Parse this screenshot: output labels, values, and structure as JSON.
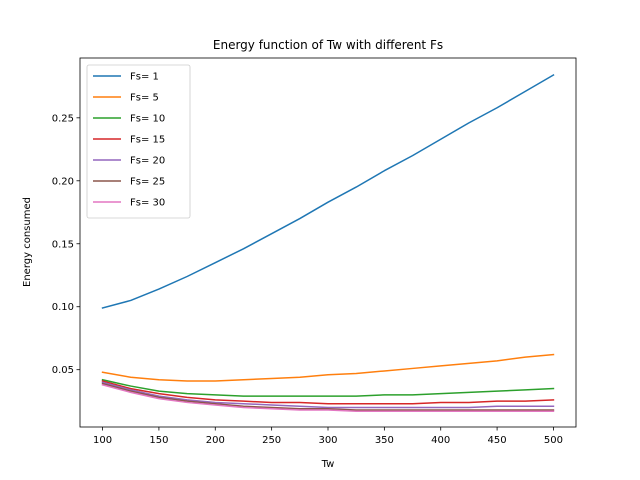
{
  "chart_data": {
    "type": "line",
    "title": "Energy function of Tw with different Fs",
    "xlabel": "Tw",
    "ylabel": "Energy consumed",
    "xlim": [
      80,
      520
    ],
    "ylim": [
      0.0045,
      0.2975
    ],
    "xticks": [
      100,
      150,
      200,
      250,
      300,
      350,
      400,
      450,
      500
    ],
    "yticks": [
      0.05,
      0.1,
      0.15,
      0.2,
      0.25
    ],
    "ytick_labels": [
      "0.05",
      "0.10",
      "0.15",
      "0.20",
      "0.25"
    ],
    "grid": false,
    "legend_position": "top-left",
    "x": [
      100,
      125,
      150,
      175,
      200,
      225,
      250,
      275,
      300,
      325,
      350,
      375,
      400,
      425,
      450,
      475,
      500
    ],
    "series": [
      {
        "name": "Fs= 1",
        "color": "#1f77b4",
        "values": [
          0.099,
          0.105,
          0.114,
          0.124,
          0.135,
          0.146,
          0.158,
          0.17,
          0.183,
          0.195,
          0.208,
          0.22,
          0.233,
          0.246,
          0.258,
          0.271,
          0.284
        ]
      },
      {
        "name": "Fs= 5",
        "color": "#ff7f0e",
        "values": [
          0.048,
          0.044,
          0.042,
          0.041,
          0.041,
          0.042,
          0.043,
          0.044,
          0.046,
          0.047,
          0.049,
          0.051,
          0.053,
          0.055,
          0.057,
          0.06,
          0.062
        ]
      },
      {
        "name": "Fs= 10",
        "color": "#2ca02c",
        "values": [
          0.042,
          0.037,
          0.033,
          0.031,
          0.03,
          0.029,
          0.029,
          0.029,
          0.029,
          0.029,
          0.03,
          0.03,
          0.031,
          0.032,
          0.033,
          0.034,
          0.035
        ]
      },
      {
        "name": "Fs= 15",
        "color": "#d62728",
        "values": [
          0.041,
          0.035,
          0.031,
          0.028,
          0.026,
          0.025,
          0.024,
          0.024,
          0.023,
          0.023,
          0.023,
          0.023,
          0.024,
          0.024,
          0.025,
          0.025,
          0.026
        ]
      },
      {
        "name": "Fs= 20",
        "color": "#9467bd",
        "values": [
          0.04,
          0.034,
          0.029,
          0.026,
          0.024,
          0.023,
          0.022,
          0.021,
          0.02,
          0.02,
          0.02,
          0.02,
          0.02,
          0.02,
          0.021,
          0.021,
          0.021
        ]
      },
      {
        "name": "Fs= 25",
        "color": "#8c564b",
        "values": [
          0.039,
          0.033,
          0.028,
          0.025,
          0.023,
          0.021,
          0.02,
          0.019,
          0.019,
          0.018,
          0.018,
          0.018,
          0.018,
          0.018,
          0.018,
          0.018,
          0.018
        ]
      },
      {
        "name": "Fs= 30",
        "color": "#e377c2",
        "values": [
          0.038,
          0.032,
          0.027,
          0.024,
          0.022,
          0.02,
          0.019,
          0.018,
          0.018,
          0.017,
          0.017,
          0.017,
          0.017,
          0.017,
          0.017,
          0.017,
          0.017
        ]
      }
    ]
  }
}
